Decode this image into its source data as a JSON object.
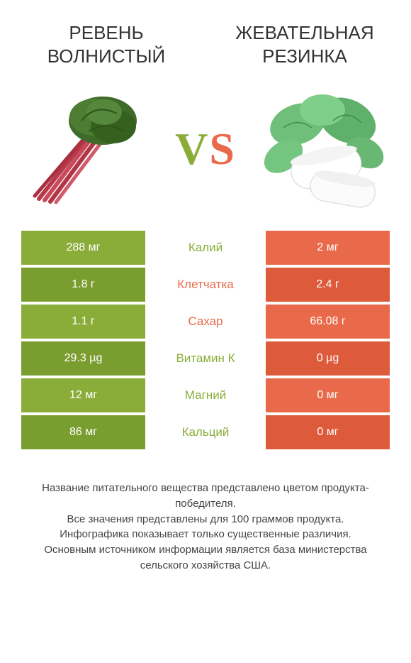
{
  "colors": {
    "green": "#8aad3a",
    "green_dark": "#7a9d2f",
    "orange": "#e96a4a",
    "orange_dark": "#dd5a3a",
    "text": "#333333"
  },
  "titles": {
    "left": "Ревень волнистый",
    "right": "Жевательная резинка"
  },
  "vs": {
    "v": "V",
    "s": "S"
  },
  "rows": [
    {
      "left": "288 мг",
      "label": "Калий",
      "right": "2 мг",
      "winner": "left"
    },
    {
      "left": "1.8 г",
      "label": "Клетчатка",
      "right": "2.4 г",
      "winner": "right"
    },
    {
      "left": "1.1 г",
      "label": "Сахар",
      "right": "66.08 г",
      "winner": "right"
    },
    {
      "left": "29.3 µg",
      "label": "Витамин К",
      "right": "0 µg",
      "winner": "left"
    },
    {
      "left": "12 мг",
      "label": "Магний",
      "right": "0 мг",
      "winner": "left"
    },
    {
      "left": "86 мг",
      "label": "Кальций",
      "right": "0 мг",
      "winner": "left"
    }
  ],
  "footer": {
    "l1": "Название питательного вещества представлено цветом продукта-победителя.",
    "l2": "Все значения представлены для 100 граммов продукта.",
    "l3": "Инфографика показывает только существенные различия.",
    "l4": "Основным источником информации является база министерства сельского хозяйства США."
  }
}
